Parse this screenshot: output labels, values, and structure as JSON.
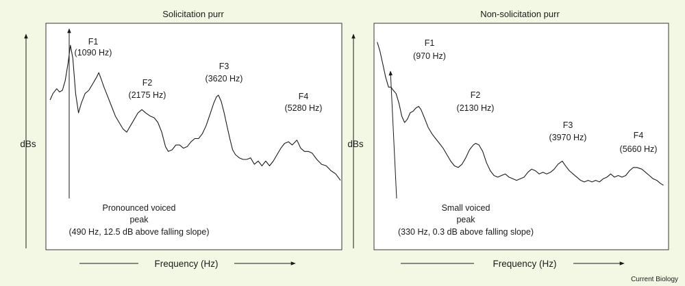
{
  "figure": {
    "credit": "Current Biology"
  },
  "chart_data": [
    {
      "type": "line",
      "title": "Solicitation purr",
      "xlabel": "Frequency (Hz)",
      "ylabel": "dBs",
      "grid": false,
      "series": [
        {
          "points": [
            [
              60,
              54
            ],
            [
              120,
              58
            ],
            [
              200,
              61
            ],
            [
              260,
              59
            ],
            [
              320,
              60
            ],
            [
              380,
              66
            ],
            [
              440,
              77
            ],
            [
              490,
              88
            ],
            [
              540,
              80
            ],
            [
              600,
              58
            ],
            [
              660,
              46
            ],
            [
              720,
              52
            ],
            [
              800,
              58
            ],
            [
              880,
              60
            ],
            [
              960,
              64
            ],
            [
              1040,
              68
            ],
            [
              1090,
              71
            ],
            [
              1140,
              67
            ],
            [
              1200,
              62
            ],
            [
              1280,
              56
            ],
            [
              1360,
              50
            ],
            [
              1440,
              44
            ],
            [
              1520,
              40
            ],
            [
              1600,
              36
            ],
            [
              1680,
              34
            ],
            [
              1760,
              38
            ],
            [
              1840,
              42
            ],
            [
              1920,
              46
            ],
            [
              2000,
              48
            ],
            [
              2080,
              46
            ],
            [
              2175,
              44
            ],
            [
              2260,
              43
            ],
            [
              2340,
              40
            ],
            [
              2420,
              34
            ],
            [
              2500,
              25
            ],
            [
              2560,
              22
            ],
            [
              2640,
              23
            ],
            [
              2720,
              26
            ],
            [
              2800,
              26
            ],
            [
              2880,
              24
            ],
            [
              2960,
              25
            ],
            [
              3040,
              28
            ],
            [
              3120,
              30
            ],
            [
              3200,
              30
            ],
            [
              3280,
              33
            ],
            [
              3360,
              38
            ],
            [
              3440,
              45
            ],
            [
              3520,
              52
            ],
            [
              3580,
              56
            ],
            [
              3620,
              57
            ],
            [
              3680,
              53
            ],
            [
              3740,
              46
            ],
            [
              3800,
              38
            ],
            [
              3860,
              30
            ],
            [
              3920,
              23
            ],
            [
              3980,
              20
            ],
            [
              4060,
              18
            ],
            [
              4140,
              17
            ],
            [
              4220,
              17
            ],
            [
              4300,
              18
            ],
            [
              4380,
              14
            ],
            [
              4460,
              16
            ],
            [
              4540,
              13
            ],
            [
              4620,
              16
            ],
            [
              4700,
              13
            ],
            [
              4780,
              16
            ],
            [
              4860,
              20
            ],
            [
              4940,
              24
            ],
            [
              5020,
              27
            ],
            [
              5100,
              28
            ],
            [
              5180,
              26
            ],
            [
              5280,
              29
            ],
            [
              5360,
              24
            ],
            [
              5440,
              22
            ],
            [
              5520,
              22
            ],
            [
              5600,
              21
            ],
            [
              5700,
              17
            ],
            [
              5800,
              14
            ],
            [
              5900,
              13
            ],
            [
              6000,
              10
            ],
            [
              6100,
              8
            ],
            [
              6200,
              4
            ]
          ]
        }
      ],
      "annotations": [
        {
          "label": "F1",
          "value": "(1090 Hz)"
        },
        {
          "label": "F2",
          "value": "(2175 Hz)"
        },
        {
          "label": "F3",
          "value": "(3620 Hz)"
        },
        {
          "label": "F4",
          "value": "(5280 Hz)"
        }
      ],
      "note": [
        "Pronounced voiced",
        "peak",
        "(490 Hz, 12.5 dB above falling slope)"
      ]
    },
    {
      "type": "line",
      "title": "Non-solicitation purr",
      "xlabel": "Frequency (Hz)",
      "ylabel": "dBs",
      "grid": false,
      "series": [
        {
          "points": [
            [
              40,
              90
            ],
            [
              100,
              84
            ],
            [
              160,
              76
            ],
            [
              220,
              68
            ],
            [
              280,
              62
            ],
            [
              330,
              62
            ],
            [
              380,
              60
            ],
            [
              440,
              58
            ],
            [
              500,
              52
            ],
            [
              560,
              44
            ],
            [
              620,
              40
            ],
            [
              680,
              42
            ],
            [
              740,
              46
            ],
            [
              800,
              47
            ],
            [
              860,
              49
            ],
            [
              920,
              50
            ],
            [
              970,
              48
            ],
            [
              1040,
              43
            ],
            [
              1120,
              37
            ],
            [
              1200,
              33
            ],
            [
              1280,
              30
            ],
            [
              1360,
              27
            ],
            [
              1440,
              24
            ],
            [
              1520,
              20
            ],
            [
              1600,
              16
            ],
            [
              1680,
              13
            ],
            [
              1760,
              12
            ],
            [
              1840,
              14
            ],
            [
              1920,
              18
            ],
            [
              2000,
              23
            ],
            [
              2080,
              26
            ],
            [
              2130,
              27
            ],
            [
              2200,
              26
            ],
            [
              2280,
              22
            ],
            [
              2360,
              15
            ],
            [
              2440,
              10
            ],
            [
              2520,
              7
            ],
            [
              2600,
              6
            ],
            [
              2680,
              7
            ],
            [
              2760,
              8
            ],
            [
              2840,
              6
            ],
            [
              2920,
              5
            ],
            [
              3000,
              4
            ],
            [
              3080,
              5
            ],
            [
              3160,
              6
            ],
            [
              3240,
              9
            ],
            [
              3320,
              11
            ],
            [
              3400,
              10
            ],
            [
              3480,
              8
            ],
            [
              3560,
              9
            ],
            [
              3640,
              8
            ],
            [
              3720,
              9
            ],
            [
              3800,
              11
            ],
            [
              3880,
              14
            ],
            [
              3970,
              16
            ],
            [
              4040,
              13
            ],
            [
              4120,
              10
            ],
            [
              4200,
              8
            ],
            [
              4280,
              6
            ],
            [
              4360,
              4
            ],
            [
              4440,
              3
            ],
            [
              4520,
              4
            ],
            [
              4600,
              3
            ],
            [
              4680,
              4
            ],
            [
              4760,
              3
            ],
            [
              4840,
              5
            ],
            [
              4920,
              6
            ],
            [
              5000,
              8
            ],
            [
              5080,
              6
            ],
            [
              5160,
              7
            ],
            [
              5240,
              6
            ],
            [
              5320,
              7
            ],
            [
              5400,
              10
            ],
            [
              5480,
              12
            ],
            [
              5560,
              12
            ],
            [
              5660,
              11
            ],
            [
              5740,
              9
            ],
            [
              5820,
              7
            ],
            [
              5900,
              5
            ],
            [
              5980,
              4
            ],
            [
              6060,
              2
            ],
            [
              6120,
              1
            ]
          ]
        }
      ],
      "annotations": [
        {
          "label": "F1",
          "value": "(970 Hz)"
        },
        {
          "label": "F2",
          "value": "(2130 Hz)"
        },
        {
          "label": "F3",
          "value": "(3970 Hz)"
        },
        {
          "label": "F4",
          "value": "(5660 Hz)"
        }
      ],
      "note": [
        "Small voiced",
        "peak",
        "(330 Hz, 0.3 dB above falling slope)"
      ]
    }
  ]
}
